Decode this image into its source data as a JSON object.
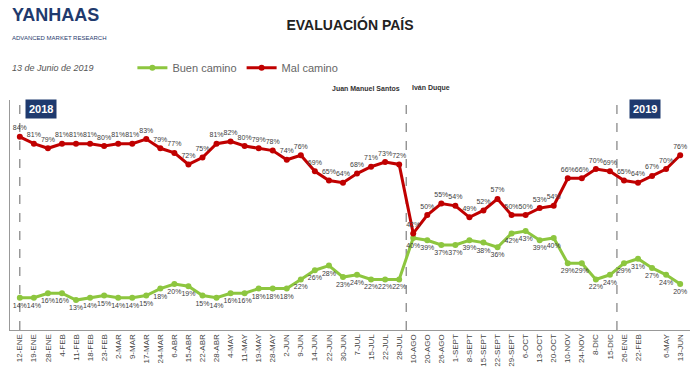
{
  "header": {
    "logo": "YANHAAS",
    "logo_subtitle": "ADVANCED MARKET RESEARCH",
    "date": "13 de Junio de 2019"
  },
  "chart_data": {
    "type": "line",
    "title": "EVALUACIÓN PAÍS",
    "categories": [
      "12-ENE",
      "19-ENE",
      "28-ENE",
      "4-FEB",
      "11-FEB",
      "18-FEB",
      "23-FEB",
      "2-MAR",
      "9-MAR",
      "17-MAR",
      "24-MAR",
      "6-ABR",
      "15-ABR",
      "22-ABR",
      "28-ABR",
      "4-MAY",
      "11-MAY",
      "19-MAY",
      "28-MAY",
      "2-JUN",
      "9-JUN",
      "14-JUN",
      "22-JUN",
      "30-JUN",
      "7-JUL",
      "15-JUL",
      "22-JUL",
      "28-JUL",
      "10-AGO",
      "20-AGO",
      "26-AGO",
      "1-SEPT",
      "8-SEPT",
      "15-SEPT",
      "22-SEPT",
      "29-SEPT",
      "6-OCT",
      "13-OCT",
      "20-OCT",
      "10-NOV",
      "24-NOV",
      "8-DIC",
      "15-DIC",
      "26-ENE",
      "22-FEB",
      null,
      "6-MAY",
      "13-JUN"
    ],
    "series": [
      {
        "name": "Buen camino",
        "color": "#8dc63f",
        "values": [
          14,
          14,
          16,
          16,
          13,
          14,
          15,
          14,
          14,
          15,
          18,
          20,
          19,
          15,
          14,
          16,
          16,
          18,
          18,
          18,
          22,
          26,
          28,
          23,
          24,
          22,
          22,
          22,
          40,
          39,
          37,
          37,
          39,
          38,
          36,
          42,
          43,
          39,
          40,
          29,
          29,
          22,
          24,
          29,
          31,
          27,
          24,
          20
        ],
        "value_labels": [
          "14%",
          "14%",
          "16%",
          "16%",
          "13%",
          "14%",
          "15%",
          "14%",
          "14%",
          "15%",
          "18%",
          "20%",
          "19%",
          "15%",
          "14%",
          "16%",
          "16%",
          "18%",
          "18%",
          "18%",
          "22%",
          "26%",
          "28%",
          "23%",
          "24%",
          "22%",
          "22%",
          "22%",
          "40%",
          "39%",
          "37%",
          "37%",
          "39%",
          "38%",
          "36%",
          "42%",
          "43%",
          "39%",
          "40%",
          "29%",
          "29%",
          "22%",
          "24%",
          "29%",
          "31%",
          "27%",
          "24%",
          "20%"
        ]
      },
      {
        "name": "Mal camino",
        "color": "#c00000",
        "values": [
          84,
          81,
          79,
          81,
          81,
          81,
          80,
          81,
          81,
          83,
          79,
          77,
          72,
          75,
          81,
          82,
          80,
          79,
          78,
          74,
          76,
          69,
          65,
          64,
          68,
          71,
          73,
          72,
          42,
          50,
          55,
          54,
          49,
          52,
          57,
          50,
          50,
          53,
          54,
          66,
          66,
          70,
          69,
          65,
          64,
          67,
          70,
          76
        ],
        "value_labels": [
          "84%",
          "81%",
          "79%",
          "81%",
          "81%",
          "81%",
          "80%",
          "81%",
          "81%",
          "83%",
          "79%",
          "77%",
          "72%",
          "75%",
          "81%",
          "82%",
          "80%",
          "79%",
          "78%",
          "74%",
          "76%",
          "69%",
          "65%",
          "64%",
          "68%",
          "71%",
          "73%",
          "72%",
          "42%",
          "50%",
          "55%",
          "54%",
          "49%",
          "52%",
          "57%",
          "50%",
          "50%",
          "53%",
          "54%",
          "66%",
          "66%",
          "70%",
          "69%",
          "65%",
          "64%",
          "67%",
          "70%",
          "76%"
        ]
      }
    ],
    "ylim": [
      0,
      100
    ],
    "yticks": [],
    "tick_labels": "x",
    "data_labels": true,
    "legend": "top",
    "marker": "circle",
    "annotations": [
      "2018",
      "2019",
      "Juan Manuel Santos",
      "Iván Duque"
    ]
  }
}
